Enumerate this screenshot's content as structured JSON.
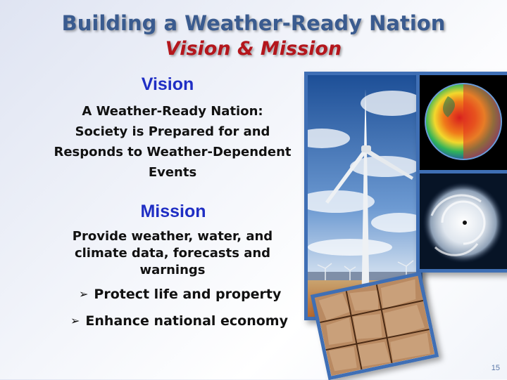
{
  "slide": {
    "title_line1": "Building a Weather-Ready Nation",
    "title_line2": "Vision & Mission",
    "vision_heading": "Vision",
    "vision_lines": [
      "A Weather-Ready Nation:",
      "Society is Prepared for and",
      "Responds to Weather-Dependent",
      "Events"
    ],
    "mission_heading": "Mission",
    "mission_lines": [
      "Provide weather, water, and",
      "climate data, forecasts and",
      "warnings"
    ],
    "bullets": [
      "Protect life and property",
      "Enhance national economy"
    ],
    "page_number": "15"
  },
  "images": {
    "wind_turbine": "wind-turbine-photo",
    "earth_globe": "earth-temperature-globe",
    "hurricane": "hurricane-satellite-photo",
    "dry_earth": "cracked-dry-earth-photo"
  },
  "colors": {
    "title_blue": "#3a5b8f",
    "title_red": "#b4161c",
    "heading_blue": "#1f2ec4",
    "frame_blue": "#3f6fb5"
  }
}
